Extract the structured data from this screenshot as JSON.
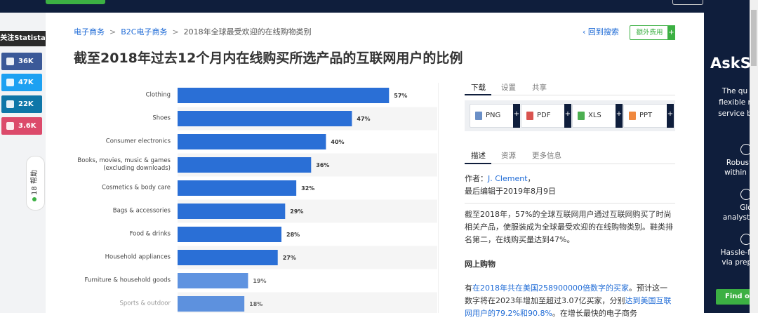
{
  "breadcrumb": {
    "items": [
      "电子商务",
      "B2C电子商务",
      "2018年全球最受欢迎的在线购物类别"
    ],
    "separator": ">",
    "back": "‹ 回到搜索",
    "extra": "额外费用",
    "extra_plus": "+"
  },
  "sidebar": {
    "follow": "关注Statista",
    "social": [
      "36K",
      "47K",
      "22K",
      "3.6K"
    ],
    "help": "帮助",
    "help_count": "18"
  },
  "title": "截至2018年过去12个月内在线购买所选产品的互联网用户的比例",
  "chart_data": {
    "type": "bar",
    "orientation": "horizontal",
    "categories": [
      "Clothing",
      "Shoes",
      "Consumer electronics",
      "Books, movies, music & games\n(excluding downloads)",
      "Cosmetics & body care",
      "Bags & accessories",
      "Food & drinks",
      "Household appliances",
      "Furniture & household goods",
      "Sports & outdoor"
    ],
    "values": [
      57,
      47,
      40,
      36,
      32,
      29,
      28,
      27,
      19,
      18
    ],
    "value_labels": [
      "57%",
      "47%",
      "40%",
      "36%",
      "32%",
      "29%",
      "28%",
      "27%",
      "19%",
      "18%"
    ],
    "color": "#2a6fd6",
    "xlim": [
      0,
      70
    ]
  },
  "panel": {
    "tabs1": [
      "下载",
      "设置",
      "共享"
    ],
    "downloads": [
      "PNG",
      "PDF",
      "XLS",
      "PPT"
    ],
    "plus": "+",
    "tabs2": [
      "描述",
      "资源",
      "更多信息"
    ],
    "author_label": "作者：",
    "author": "J. Clement",
    "author_suffix": "，",
    "edited": "最后编辑于2019年8月9日",
    "paragraph1": "截至2018年，57%的全球互联网用户通过互联网购买了时尚相关产品，使服装成为全球最受欢迎的在线购物类别。鞋类排名第二，在线购买量达到47%。",
    "heading": "网上购物",
    "paragraph2": [
      "有",
      "在2018年共在美国258900000倍数字的买家",
      "。预计这一数字将在2023年增加至超过3.07亿买家，分别",
      "达到美国互联网用户的79.2%和90.8%",
      "。在增长最快的电子商务"
    ]
  },
  "ad": {
    "brand": "AskSt",
    "intro": [
      "The qu",
      "flexible r",
      "service b"
    ],
    "features": [
      [
        "Robust",
        "within 2"
      ],
      [
        "Glo",
        "analyst"
      ],
      [
        "Hassle-fre",
        "via prepa"
      ]
    ],
    "button": "Find ou"
  }
}
